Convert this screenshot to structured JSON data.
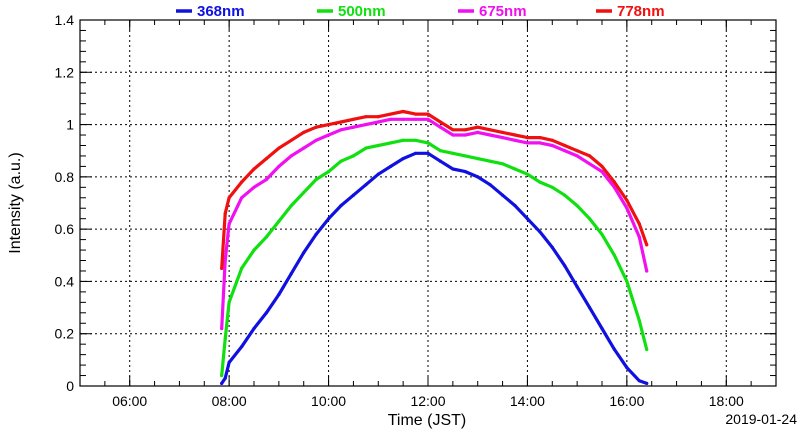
{
  "chart_data": {
    "type": "line",
    "xlabel": "Time (JST)",
    "ylabel": "Intensity (a.u.)",
    "date_label": "2019-01-24",
    "xlim": [
      5.0,
      19.0
    ],
    "ylim": [
      0,
      1.4
    ],
    "x_ticks": [
      {
        "value": 6,
        "label": "06:00"
      },
      {
        "value": 8,
        "label": "08:00"
      },
      {
        "value": 10,
        "label": "10:00"
      },
      {
        "value": 12,
        "label": "12:00"
      },
      {
        "value": 14,
        "label": "14:00"
      },
      {
        "value": 16,
        "label": "16:00"
      },
      {
        "value": 18,
        "label": "18:00"
      }
    ],
    "y_ticks": [
      {
        "value": 0,
        "label": "0"
      },
      {
        "value": 0.2,
        "label": "0.2"
      },
      {
        "value": 0.4,
        "label": "0.4"
      },
      {
        "value": 0.6,
        "label": "0.6"
      },
      {
        "value": 0.8,
        "label": "0.8"
      },
      {
        "value": 1.0,
        "label": "1"
      },
      {
        "value": 1.2,
        "label": "1.2"
      },
      {
        "value": 1.4,
        "label": "1.4"
      }
    ],
    "grid": true,
    "legend_position": "top",
    "series": [
      {
        "name": "368nm",
        "color": "#1010e0",
        "x": [
          7.85,
          7.92,
          8.0,
          8.25,
          8.5,
          8.75,
          9.0,
          9.25,
          9.5,
          9.75,
          10.0,
          10.25,
          10.5,
          10.75,
          11.0,
          11.25,
          11.5,
          11.75,
          12.0,
          12.25,
          12.5,
          12.75,
          13.0,
          13.25,
          13.5,
          13.75,
          14.0,
          14.25,
          14.5,
          14.75,
          15.0,
          15.25,
          15.5,
          15.75,
          16.0,
          16.25,
          16.4
        ],
        "y": [
          0.01,
          0.03,
          0.09,
          0.15,
          0.22,
          0.28,
          0.35,
          0.43,
          0.51,
          0.58,
          0.64,
          0.69,
          0.73,
          0.77,
          0.81,
          0.84,
          0.87,
          0.89,
          0.89,
          0.86,
          0.83,
          0.82,
          0.8,
          0.77,
          0.73,
          0.69,
          0.64,
          0.59,
          0.53,
          0.46,
          0.38,
          0.3,
          0.22,
          0.14,
          0.07,
          0.02,
          0.01
        ]
      },
      {
        "name": "500nm",
        "color": "#10e010",
        "x": [
          7.85,
          7.92,
          8.0,
          8.25,
          8.5,
          8.75,
          9.0,
          9.25,
          9.5,
          9.75,
          10.0,
          10.25,
          10.5,
          10.75,
          11.0,
          11.25,
          11.5,
          11.75,
          12.0,
          12.25,
          12.5,
          12.75,
          13.0,
          13.25,
          13.5,
          13.75,
          14.0,
          14.25,
          14.5,
          14.75,
          15.0,
          15.25,
          15.5,
          15.75,
          16.0,
          16.25,
          16.4
        ],
        "y": [
          0.04,
          0.18,
          0.32,
          0.45,
          0.52,
          0.57,
          0.63,
          0.69,
          0.74,
          0.79,
          0.82,
          0.86,
          0.88,
          0.91,
          0.92,
          0.93,
          0.94,
          0.94,
          0.93,
          0.9,
          0.89,
          0.88,
          0.87,
          0.86,
          0.85,
          0.83,
          0.81,
          0.78,
          0.76,
          0.73,
          0.69,
          0.64,
          0.58,
          0.5,
          0.4,
          0.25,
          0.14
        ]
      },
      {
        "name": "675nm",
        "color": "#f010f0",
        "x": [
          7.85,
          7.92,
          8.0,
          8.25,
          8.5,
          8.75,
          9.0,
          9.25,
          9.5,
          9.75,
          10.0,
          10.25,
          10.5,
          10.75,
          11.0,
          11.25,
          11.5,
          11.75,
          12.0,
          12.25,
          12.5,
          12.75,
          13.0,
          13.25,
          13.5,
          13.75,
          14.0,
          14.25,
          14.5,
          14.75,
          15.0,
          15.25,
          15.5,
          15.75,
          16.0,
          16.25,
          16.4
        ],
        "y": [
          0.22,
          0.48,
          0.62,
          0.72,
          0.76,
          0.79,
          0.84,
          0.88,
          0.91,
          0.94,
          0.96,
          0.98,
          0.99,
          1.0,
          1.01,
          1.02,
          1.02,
          1.02,
          1.02,
          0.99,
          0.96,
          0.96,
          0.97,
          0.96,
          0.95,
          0.94,
          0.93,
          0.93,
          0.92,
          0.9,
          0.88,
          0.85,
          0.82,
          0.76,
          0.68,
          0.57,
          0.44
        ]
      },
      {
        "name": "778nm",
        "color": "#f01010",
        "x": [
          7.85,
          7.92,
          8.0,
          8.25,
          8.5,
          8.75,
          9.0,
          9.25,
          9.5,
          9.75,
          10.0,
          10.25,
          10.5,
          10.75,
          11.0,
          11.25,
          11.5,
          11.75,
          12.0,
          12.25,
          12.5,
          12.75,
          13.0,
          13.25,
          13.5,
          13.75,
          14.0,
          14.25,
          14.5,
          14.75,
          15.0,
          15.25,
          15.5,
          15.75,
          16.0,
          16.25,
          16.4
        ],
        "y": [
          0.45,
          0.66,
          0.72,
          0.78,
          0.83,
          0.87,
          0.91,
          0.94,
          0.97,
          0.99,
          1.0,
          1.01,
          1.02,
          1.03,
          1.03,
          1.04,
          1.05,
          1.04,
          1.04,
          1.01,
          0.98,
          0.98,
          0.99,
          0.98,
          0.97,
          0.96,
          0.95,
          0.95,
          0.94,
          0.92,
          0.9,
          0.88,
          0.84,
          0.78,
          0.71,
          0.62,
          0.54
        ]
      }
    ]
  }
}
